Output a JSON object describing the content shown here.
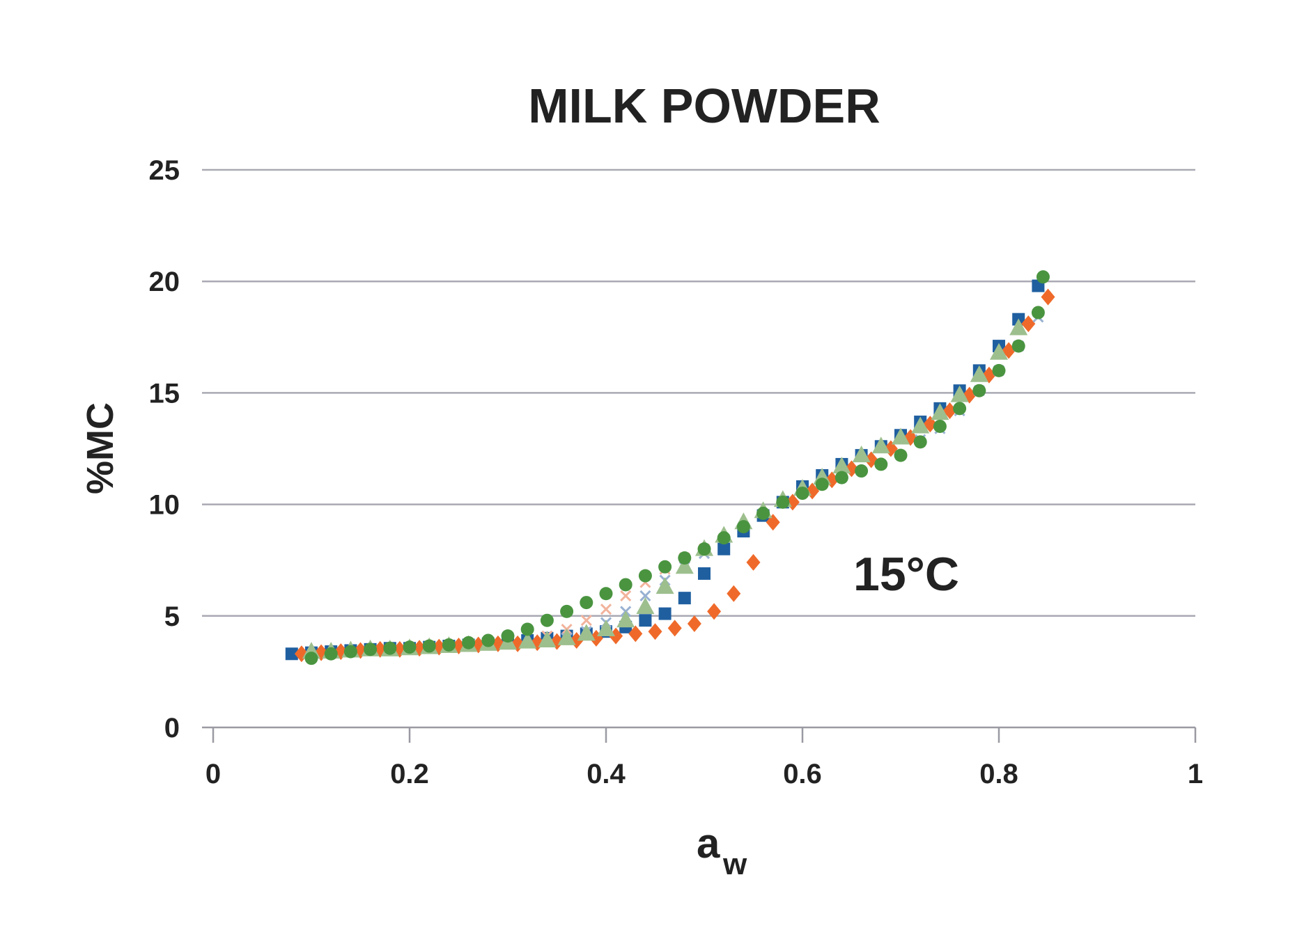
{
  "chart_data": {
    "type": "scatter",
    "title": "MILK POWDER",
    "xlabel_main": "a",
    "xlabel_sub": "w",
    "ylabel": "%MC",
    "annotation": "15°C",
    "xlim": [
      0,
      1
    ],
    "ylim": [
      0,
      25
    ],
    "x_ticks": [
      "0",
      "0.2",
      "0.4",
      "0.6",
      "0.8",
      "1"
    ],
    "y_ticks": [
      "0",
      "5",
      "10",
      "15",
      "20",
      "25"
    ],
    "grid": true,
    "legend": "none",
    "series": [
      {
        "marker": "square",
        "color": "#1f5fa0",
        "x": [
          0.08,
          0.1,
          0.12,
          0.14,
          0.16,
          0.18,
          0.2,
          0.22,
          0.24,
          0.26,
          0.28,
          0.3,
          0.32,
          0.34,
          0.36,
          0.38,
          0.4,
          0.42,
          0.44,
          0.46,
          0.48,
          0.5,
          0.52,
          0.54,
          0.56,
          0.58,
          0.6,
          0.62,
          0.64,
          0.66,
          0.68,
          0.7,
          0.72,
          0.74,
          0.76,
          0.78,
          0.8,
          0.82,
          0.84
        ],
        "y": [
          3.3,
          3.35,
          3.4,
          3.45,
          3.5,
          3.55,
          3.55,
          3.6,
          3.65,
          3.7,
          3.75,
          3.8,
          3.9,
          4.0,
          4.1,
          4.2,
          4.3,
          4.5,
          4.8,
          5.1,
          5.8,
          6.9,
          8.0,
          8.8,
          9.5,
          10.1,
          10.8,
          11.3,
          11.8,
          12.2,
          12.6,
          13.1,
          13.7,
          14.3,
          15.1,
          16.0,
          17.1,
          18.3,
          19.8
        ]
      },
      {
        "marker": "diamond",
        "color": "#ef6a2a",
        "x": [
          0.09,
          0.11,
          0.13,
          0.15,
          0.17,
          0.19,
          0.21,
          0.23,
          0.25,
          0.27,
          0.29,
          0.31,
          0.33,
          0.35,
          0.37,
          0.39,
          0.41,
          0.43,
          0.45,
          0.47,
          0.49,
          0.51,
          0.53,
          0.55,
          0.57,
          0.59,
          0.61,
          0.63,
          0.65,
          0.67,
          0.69,
          0.71,
          0.73,
          0.75,
          0.77,
          0.79,
          0.81,
          0.83,
          0.85
        ],
        "y": [
          3.3,
          3.35,
          3.4,
          3.45,
          3.5,
          3.5,
          3.55,
          3.6,
          3.65,
          3.7,
          3.75,
          3.75,
          3.8,
          3.85,
          3.9,
          4.0,
          4.1,
          4.2,
          4.3,
          4.45,
          4.65,
          5.2,
          6.0,
          7.4,
          9.2,
          10.1,
          10.6,
          11.1,
          11.6,
          12.0,
          12.5,
          13.0,
          13.6,
          14.2,
          14.9,
          15.8,
          16.9,
          18.1,
          19.3
        ]
      },
      {
        "marker": "cross",
        "color": "#f2b39c",
        "x": [
          0.34,
          0.36,
          0.38,
          0.4,
          0.42,
          0.44,
          0.46,
          0.48,
          0.5
        ],
        "y": [
          4.1,
          4.4,
          4.8,
          5.3,
          5.9,
          6.5,
          7.1,
          7.6,
          8.0
        ]
      },
      {
        "marker": "cross",
        "color": "#98b1d2",
        "x": [
          0.36,
          0.38,
          0.4,
          0.42,
          0.44,
          0.46,
          0.48,
          0.5,
          0.72,
          0.74,
          0.76,
          0.78,
          0.8,
          0.82,
          0.84
        ],
        "y": [
          4.0,
          4.3,
          4.7,
          5.2,
          5.9,
          6.6,
          7.2,
          7.8,
          12.9,
          13.4,
          14.2,
          15.1,
          16.0,
          17.1,
          18.4
        ]
      },
      {
        "marker": "triangle",
        "color": "#9dbf8e",
        "x": [
          0.1,
          0.12,
          0.14,
          0.16,
          0.18,
          0.2,
          0.22,
          0.24,
          0.26,
          0.28,
          0.3,
          0.32,
          0.34,
          0.36,
          0.38,
          0.4,
          0.42,
          0.44,
          0.46,
          0.48,
          0.5,
          0.52,
          0.54,
          0.56,
          0.58,
          0.6,
          0.62,
          0.64,
          0.66,
          0.68,
          0.7,
          0.72,
          0.74,
          0.76,
          0.78,
          0.8,
          0.82
        ],
        "y": [
          3.4,
          3.4,
          3.45,
          3.5,
          3.5,
          3.55,
          3.6,
          3.65,
          3.7,
          3.75,
          3.8,
          3.85,
          3.9,
          4.0,
          4.2,
          4.4,
          4.8,
          5.4,
          6.3,
          7.2,
          8.0,
          8.6,
          9.2,
          9.7,
          10.2,
          10.7,
          11.2,
          11.7,
          12.2,
          12.6,
          13.0,
          13.5,
          14.1,
          14.9,
          15.8,
          16.8,
          17.9
        ]
      },
      {
        "marker": "circle",
        "color": "#4a9440",
        "x": [
          0.1,
          0.12,
          0.14,
          0.16,
          0.18,
          0.2,
          0.22,
          0.24,
          0.26,
          0.28,
          0.3,
          0.32,
          0.34,
          0.36,
          0.38,
          0.4,
          0.42,
          0.44,
          0.46,
          0.48,
          0.5,
          0.52,
          0.54,
          0.56,
          0.58,
          0.6,
          0.62,
          0.64,
          0.66,
          0.68,
          0.7,
          0.72,
          0.74,
          0.76,
          0.78,
          0.8,
          0.82,
          0.84,
          0.845
        ],
        "y": [
          3.1,
          3.3,
          3.4,
          3.5,
          3.55,
          3.6,
          3.65,
          3.7,
          3.8,
          3.9,
          4.1,
          4.4,
          4.8,
          5.2,
          5.6,
          6.0,
          6.4,
          6.8,
          7.2,
          7.6,
          8.0,
          8.5,
          9.0,
          9.6,
          10.1,
          10.5,
          10.9,
          11.2,
          11.5,
          11.8,
          12.2,
          12.8,
          13.5,
          14.3,
          15.1,
          16.0,
          17.1,
          18.6,
          20.2
        ]
      }
    ]
  }
}
